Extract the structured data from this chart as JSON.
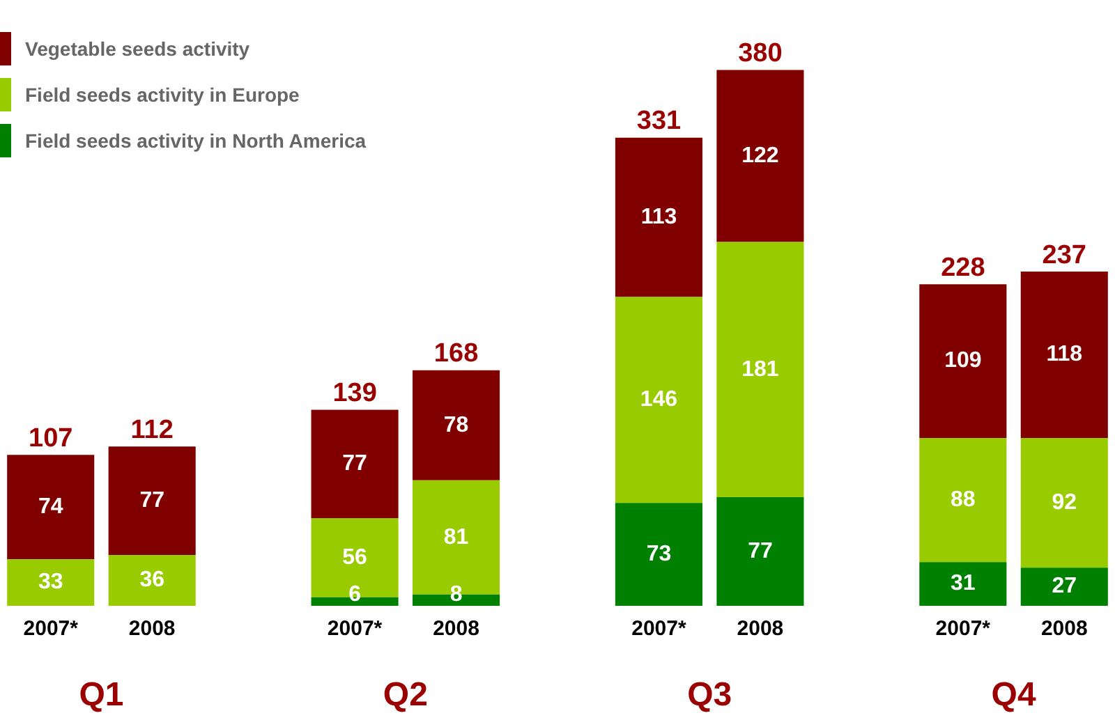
{
  "chart_data": {
    "type": "bar",
    "stacked": true,
    "data_labels": true,
    "grid": false,
    "legend": "top left",
    "categories": [
      "2007*",
      "2008",
      null,
      "2007*",
      "2008",
      null,
      "2007*",
      "2008",
      null,
      "2007*",
      "2008"
    ],
    "series": [
      {
        "name": "Field seeds activity in North America",
        "color": "#008000",
        "values": [
          null,
          null,
          null,
          6,
          8,
          null,
          73,
          77,
          null,
          31,
          27
        ]
      },
      {
        "name": "Field seeds activity in Europe",
        "color": "#99cc00",
        "values": [
          33,
          36,
          null,
          56,
          81,
          null,
          146,
          181,
          null,
          88,
          92
        ]
      },
      {
        "name": "Vegetable seeds activity",
        "color": "#800000",
        "values": [
          74,
          77,
          null,
          77,
          78,
          null,
          113,
          122,
          null,
          109,
          118
        ]
      }
    ],
    "totals": [
      "107",
      "112",
      null,
      "139",
      "168",
      null,
      "331",
      "380",
      null,
      "228",
      "237"
    ],
    "annotations": [
      "Q1",
      "Q2",
      "Q3",
      "Q4"
    ]
  }
}
